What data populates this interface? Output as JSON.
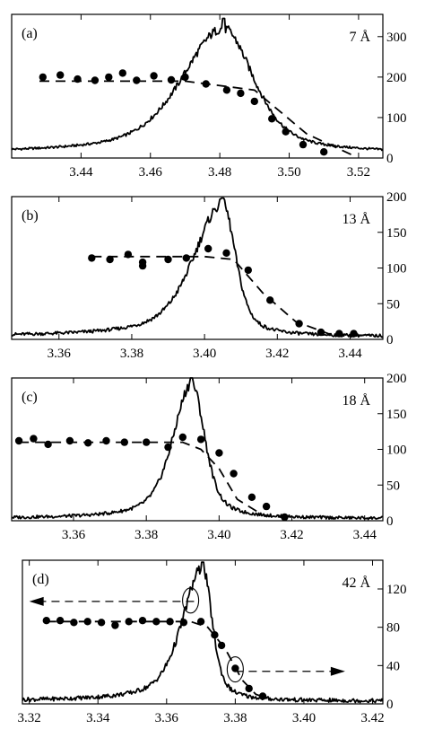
{
  "chart_data": [
    {
      "type": "line",
      "panel_label": "(a)",
      "size_label": "7 Å",
      "xlim": [
        3.42,
        3.527
      ],
      "ylim": [
        0,
        355
      ],
      "x_ticks": [
        3.44,
        3.46,
        3.48,
        3.5,
        3.52
      ],
      "x_tick_labels": [
        "3.44",
        "3.46",
        "3.48",
        "3.50",
        "3.52"
      ],
      "y_ticks": [
        0,
        100,
        200,
        300
      ],
      "y_tick_labels": [
        "0",
        "100",
        "200",
        "300"
      ],
      "y_axis_side": "right",
      "peak_x": 3.481,
      "peak_y": 320,
      "peak_top": 345,
      "left_width": 0.015,
      "right_width": 0.011,
      "background": 12,
      "plateau_level": 190,
      "dashed_line": [
        [
          3.428,
          190
        ],
        [
          3.47,
          190
        ],
        [
          3.49,
          168
        ],
        [
          3.505,
          60
        ],
        [
          3.518,
          8
        ]
      ],
      "markers": [
        [
          3.429,
          200
        ],
        [
          3.434,
          205
        ],
        [
          3.439,
          195
        ],
        [
          3.444,
          192
        ],
        [
          3.448,
          200
        ],
        [
          3.452,
          210
        ],
        [
          3.456,
          192
        ],
        [
          3.461,
          203
        ],
        [
          3.466,
          193
        ],
        [
          3.47,
          200
        ],
        [
          3.476,
          183
        ],
        [
          3.482,
          168
        ],
        [
          3.486,
          160
        ],
        [
          3.49,
          140
        ],
        [
          3.495,
          97
        ],
        [
          3.499,
          65
        ],
        [
          3.504,
          33
        ],
        [
          3.51,
          15
        ]
      ],
      "annotations": []
    },
    {
      "type": "line",
      "panel_label": "(b)",
      "size_label": "13 Å",
      "xlim": [
        3.347,
        3.449
      ],
      "ylim": [
        0,
        200
      ],
      "x_ticks": [
        3.36,
        3.38,
        3.4,
        3.42,
        3.44
      ],
      "x_tick_labels": [
        "3.36",
        "3.38",
        "3.40",
        "3.42",
        "3.44"
      ],
      "y_ticks": [
        0,
        50,
        100,
        150,
        200
      ],
      "y_tick_labels": [
        "0",
        "50",
        "100",
        "150",
        "200"
      ],
      "y_axis_side": "right",
      "peak_x": 3.405,
      "peak_y": 190,
      "peak_top": 198,
      "left_width": 0.01,
      "right_width": 0.0045,
      "background": 4,
      "plateau_level": 116,
      "dashed_line": [
        [
          3.369,
          116
        ],
        [
          3.4,
          116
        ],
        [
          3.408,
          112
        ],
        [
          3.416,
          65
        ],
        [
          3.425,
          25
        ],
        [
          3.434,
          8
        ],
        [
          3.446,
          5
        ]
      ],
      "markers": [
        [
          3.369,
          114
        ],
        [
          3.374,
          112
        ],
        [
          3.379,
          119
        ],
        [
          3.383,
          108
        ],
        [
          3.383,
          103
        ],
        [
          3.39,
          112
        ],
        [
          3.395,
          114
        ],
        [
          3.401,
          127
        ],
        [
          3.406,
          121
        ],
        [
          3.412,
          97
        ],
        [
          3.418,
          55
        ],
        [
          3.426,
          22
        ],
        [
          3.432,
          10
        ],
        [
          3.437,
          8
        ],
        [
          3.441,
          8
        ]
      ],
      "annotations": []
    },
    {
      "type": "line",
      "panel_label": "(c)",
      "size_label": "18 Å",
      "xlim": [
        3.343,
        3.445
      ],
      "ylim": [
        0,
        200
      ],
      "x_ticks": [
        3.36,
        3.38,
        3.4,
        3.42,
        3.44
      ],
      "x_tick_labels": [
        "3.36",
        "3.38",
        "3.40",
        "3.42",
        "3.44"
      ],
      "y_ticks": [
        0,
        50,
        100,
        150,
        200
      ],
      "y_tick_labels": [
        "0",
        "50",
        "100",
        "150",
        "200"
      ],
      "y_axis_side": "right",
      "peak_x": 3.3925,
      "peak_y": 192,
      "peak_top": 200,
      "left_width": 0.0065,
      "right_width": 0.0045,
      "background": 3,
      "plateau_level": 108,
      "dashed_line": [
        [
          3.345,
          110
        ],
        [
          3.39,
          110
        ],
        [
          3.395,
          100
        ],
        [
          3.4,
          73
        ],
        [
          3.405,
          30
        ],
        [
          3.412,
          8
        ],
        [
          3.42,
          3
        ]
      ],
      "markers": [
        [
          3.345,
          112
        ],
        [
          3.349,
          115
        ],
        [
          3.353,
          107
        ],
        [
          3.359,
          112
        ],
        [
          3.364,
          109
        ],
        [
          3.369,
          112
        ],
        [
          3.374,
          110
        ],
        [
          3.38,
          110
        ],
        [
          3.386,
          103
        ],
        [
          3.39,
          117
        ],
        [
          3.395,
          114
        ],
        [
          3.4,
          95
        ],
        [
          3.404,
          66
        ],
        [
          3.409,
          33
        ],
        [
          3.413,
          20
        ],
        [
          3.418,
          5
        ]
      ],
      "annotations": []
    },
    {
      "type": "line",
      "panel_label": "(d)",
      "size_label": "42 Å",
      "xlim": [
        3.318,
        3.423
      ],
      "ylim": [
        0,
        150
      ],
      "x_ticks": [
        3.32,
        3.34,
        3.36,
        3.38,
        3.4,
        3.42
      ],
      "x_tick_labels": [
        "3.32",
        "3.34",
        "3.36",
        "3.38",
        "3.40",
        "3.42"
      ],
      "y_ticks": [
        0,
        40,
        80,
        120
      ],
      "y_tick_labels": [
        "0",
        "40",
        "80",
        "120"
      ],
      "y_axis_side": "right",
      "peak_x": 3.3705,
      "peak_y": 142,
      "peak_top": 148,
      "left_width": 0.0075,
      "right_width": 0.0035,
      "background": 3,
      "plateau_level": 86,
      "dashed_line": [
        [
          3.325,
          86
        ],
        [
          3.367,
          86
        ],
        [
          3.372,
          80
        ],
        [
          3.377,
          58
        ],
        [
          3.382,
          25
        ],
        [
          3.386,
          10
        ],
        [
          3.39,
          5
        ]
      ],
      "markers": [
        [
          3.325,
          87
        ],
        [
          3.329,
          87
        ],
        [
          3.333,
          85
        ],
        [
          3.337,
          86
        ],
        [
          3.341,
          85
        ],
        [
          3.345,
          82
        ],
        [
          3.349,
          86
        ],
        [
          3.353,
          87
        ],
        [
          3.357,
          86
        ],
        [
          3.361,
          86
        ],
        [
          3.365,
          85
        ],
        [
          3.37,
          86
        ],
        [
          3.374,
          72
        ],
        [
          3.376,
          61
        ],
        [
          3.38,
          37
        ],
        [
          3.384,
          16
        ],
        [
          3.388,
          8
        ]
      ],
      "annotations": [
        {
          "type": "arrow",
          "from": [
            3.368,
            107
          ],
          "to": [
            3.32,
            107
          ],
          "circle_at": [
            3.367,
            108
          ]
        },
        {
          "type": "arrow",
          "from": [
            3.38,
            34
          ],
          "to": [
            3.412,
            34
          ],
          "circle_at": [
            3.38,
            36
          ]
        }
      ]
    }
  ]
}
